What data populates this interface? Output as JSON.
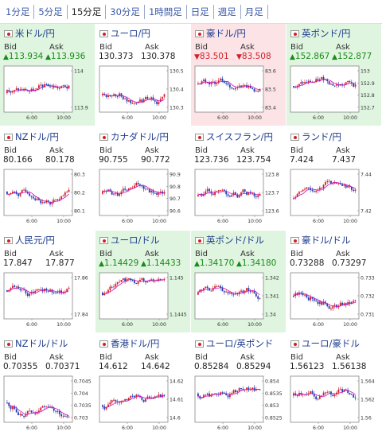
{
  "tabs": [
    {
      "label": "1分足",
      "active": false
    },
    {
      "label": "5分足",
      "active": false
    },
    {
      "label": "15分足",
      "active": true
    },
    {
      "label": "30分足",
      "active": false
    },
    {
      "label": "1時間足",
      "active": false
    },
    {
      "label": "日足",
      "active": false
    },
    {
      "label": "週足",
      "active": false
    },
    {
      "label": "月足",
      "active": false
    }
  ],
  "labels": {
    "bid": "Bid",
    "ask": "Ask"
  },
  "colors": {
    "up_background": "#dff5df",
    "down_background": "#fbe3e6",
    "up_text": "#1a8a1a",
    "down_text": "#d2202a",
    "candle_up": "#d2202a",
    "candle_down": "#1f3fb4",
    "moving_average": "#d10fb8"
  },
  "panels": [
    {
      "name": "米ドル/円",
      "bid": "113.934",
      "ask": "113.936",
      "direction": "up",
      "y_ticks": [
        "114",
        "113.9"
      ],
      "x_ticks": [
        "6:00",
        "10:00"
      ]
    },
    {
      "name": "ユーロ/円",
      "bid": "130.373",
      "ask": "130.378",
      "direction": "none",
      "y_ticks": [
        "130.5",
        "130.4",
        "130.3"
      ],
      "x_ticks": [
        "6:00",
        "10:00"
      ]
    },
    {
      "name": "豪ドル/円",
      "bid": "83.501",
      "ask": "83.508",
      "direction": "down",
      "y_ticks": [
        "83.6",
        "83.5",
        "83.4"
      ],
      "x_ticks": [
        "6:00",
        "10:00"
      ]
    },
    {
      "name": "英ポンド/円",
      "bid": "152.867",
      "ask": "152.877",
      "direction": "up",
      "y_ticks": [
        "153",
        "152.9",
        "152.8",
        "152.7"
      ],
      "x_ticks": [
        "6:00",
        "10:00"
      ]
    },
    {
      "name": "NZドル/円",
      "bid": "80.166",
      "ask": "80.178",
      "direction": "none",
      "y_ticks": [
        "80.3",
        "80.2",
        "80.1"
      ],
      "x_ticks": [
        "6:00",
        "10:00"
      ]
    },
    {
      "name": "カナダドル/円",
      "bid": "90.755",
      "ask": "90.772",
      "direction": "none",
      "y_ticks": [
        "90.9",
        "90.8",
        "90.7",
        "90.6"
      ],
      "x_ticks": [
        "6:00",
        "10:00"
      ]
    },
    {
      "name": "スイスフラン/円",
      "bid": "123.736",
      "ask": "123.754",
      "direction": "none",
      "y_ticks": [
        "123.8",
        "123.7",
        "123.6"
      ],
      "x_ticks": [
        "6:00",
        "10:00"
      ]
    },
    {
      "name": "ランド/円",
      "bid": "7.424",
      "ask": "7.437",
      "direction": "none",
      "y_ticks": [
        "7.44",
        "7.42"
      ],
      "x_ticks": [
        "6:00",
        "10:00"
      ]
    },
    {
      "name": "人民元/円",
      "bid": "17.847",
      "ask": "17.877",
      "direction": "none",
      "y_ticks": [
        "17.86",
        "17.84"
      ],
      "x_ticks": [
        "6:00",
        "10:00"
      ]
    },
    {
      "name": "ユーロ/ドル",
      "bid": "1.14429",
      "ask": "1.14433",
      "direction": "up",
      "y_ticks": [
        "1.145",
        "1.1445"
      ],
      "x_ticks": [
        "6:00",
        "10:00"
      ]
    },
    {
      "name": "英ポンド/ドル",
      "bid": "1.34170",
      "ask": "1.34180",
      "direction": "up",
      "y_ticks": [
        "1.342",
        "1.341",
        "1.34"
      ],
      "x_ticks": [
        "6:00",
        "10:00"
      ]
    },
    {
      "name": "豪ドル/ドル",
      "bid": "0.73288",
      "ask": "0.73297",
      "direction": "none",
      "y_ticks": [
        "0.733",
        "0.732",
        "0.731"
      ],
      "x_ticks": [
        "6:00",
        "10:00"
      ]
    },
    {
      "name": "NZドル/ドル",
      "bid": "0.70355",
      "ask": "0.70371",
      "direction": "none",
      "y_ticks": [
        "0.7045",
        "0.704",
        "0.7035",
        "0.703"
      ],
      "x_ticks": [
        "6:00",
        "10:00"
      ]
    },
    {
      "name": "香港ドル/円",
      "bid": "14.612",
      "ask": "14.642",
      "direction": "none",
      "y_ticks": [
        "14.62",
        "14.61",
        "14.6"
      ],
      "x_ticks": [
        "6:00",
        "10:00"
      ]
    },
    {
      "name": "ユーロ/英ポンド",
      "bid": "0.85284",
      "ask": "0.85294",
      "direction": "none",
      "y_ticks": [
        "0.854",
        "0.8535",
        "0.853",
        "0.8525"
      ],
      "x_ticks": [
        "6:00",
        "10:00"
      ]
    },
    {
      "name": "ユーロ/豪ドル",
      "bid": "1.56123",
      "ask": "1.56138",
      "direction": "none",
      "y_ticks": [
        "1.564",
        "1.562",
        "1.56"
      ],
      "x_ticks": [
        "6:00",
        "10:00"
      ]
    }
  ]
}
